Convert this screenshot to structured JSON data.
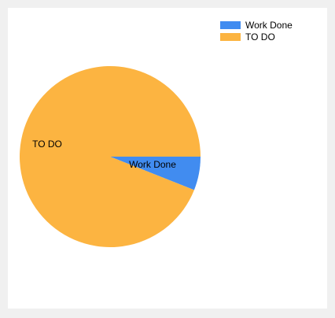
{
  "chart_data": {
    "type": "pie",
    "categories": [
      "Work Done",
      "TO DO"
    ],
    "values": [
      6,
      94
    ],
    "colors": [
      "#418cf0",
      "#fcb441"
    ],
    "legend": "top-right",
    "data_labels": [
      "Work Done",
      "TO DO"
    ]
  }
}
